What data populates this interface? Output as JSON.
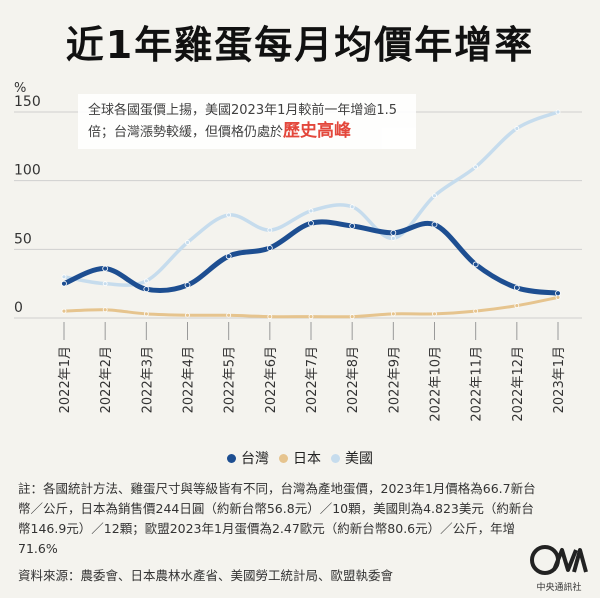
{
  "title": "近1年雞蛋每月均價年增率",
  "callout": {
    "text": "全球各國蛋價上揚，美國2023年1月較前一年增逾1.5倍；台灣漲勢較緩，但價格仍處於",
    "highlight": "歷史高峰"
  },
  "chart_data": {
    "type": "line",
    "ylabel": "%",
    "ylim": [
      0,
      150
    ],
    "yticks": [
      "0",
      "50",
      "100",
      "150"
    ],
    "x": [
      "2022年1月",
      "2022年2月",
      "2022年3月",
      "2022年4月",
      "2022年5月",
      "2022年6月",
      "2022年7月",
      "2022年8月",
      "2022年9月",
      "2022年10月",
      "2022年11月",
      "2022年12月",
      "2023年1月"
    ],
    "series": [
      {
        "name": "台灣",
        "color": "#1d4e91",
        "values": [
          25,
          36,
          21,
          24,
          45,
          51,
          69,
          67,
          62,
          68,
          39,
          22,
          18
        ]
      },
      {
        "name": "日本",
        "color": "#e6c48e",
        "values": [
          5,
          6,
          3,
          2,
          2,
          1,
          1,
          1,
          3,
          3,
          5,
          9,
          15
        ]
      },
      {
        "name": "美國",
        "color": "#c6dced",
        "values": [
          30,
          25,
          27,
          55,
          75,
          64,
          78,
          81,
          58,
          89,
          110,
          138,
          150
        ]
      }
    ],
    "legend_position": "bottom-center"
  },
  "note": {
    "text": "註：各國統計方法、雞蛋尺寸與等級皆有不同，台灣為產地蛋價，2023年1月價格為66.7新台幣／公斤，日本為銷售價244日圓（約新台幣56.8元）／10顆，美國則為4.823美元（約新台幣146.9元）／12顆；歐盟2023年1月蛋價為2.47歐元（約新台幣80.6元）／公斤，年增71.6%"
  },
  "source": {
    "text": "資料來源：農委會、日本農林水產省、美國勞工統計局、歐盟執委會"
  },
  "logo": {
    "org": "中央通訊社",
    "mark_text": "CNA"
  }
}
